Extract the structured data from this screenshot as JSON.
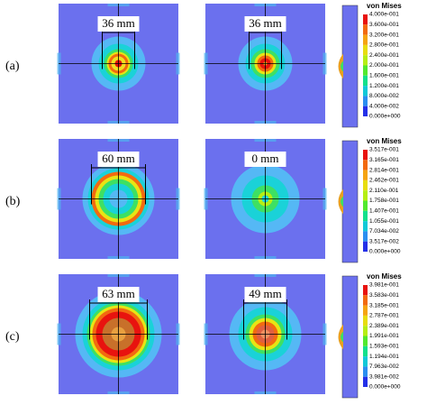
{
  "rows": [
    {
      "label": "(a)",
      "panels": [
        {
          "dimension": "36 mm"
        },
        {
          "dimension": "36 mm"
        }
      ],
      "legend": {
        "title": "von Mises",
        "levels": [
          "4.000e-001",
          "3.600e-001",
          "3.200e-001",
          "2.800e-001",
          "2.400e-001",
          "2.000e-001",
          "1.600e-001",
          "1.200e-001",
          "8.000e-002",
          "4.000e-002",
          "0.000e+000"
        ]
      }
    },
    {
      "label": "(b)",
      "panels": [
        {
          "dimension": "60 mm"
        },
        {
          "dimension": "0 mm"
        }
      ],
      "legend": {
        "title": "von Mises",
        "levels": [
          "3.517e-001",
          "3.165e-001",
          "2.814e-001",
          "2.462e-001",
          "2.110e-001",
          "1.758e-001",
          "1.407e-001",
          "1.055e-001",
          "7.034e-002",
          "3.517e-002",
          "0.000e+000"
        ]
      }
    },
    {
      "label": "(c)",
      "panels": [
        {
          "dimension": "63 mm"
        },
        {
          "dimension": "49 mm"
        }
      ],
      "legend": {
        "title": "von Mises",
        "levels": [
          "3.981e-001",
          "3.583e-001",
          "3.185e-001",
          "2.787e-001",
          "2.389e-001",
          "1.991e-001",
          "1.593e-001",
          "1.194e-001",
          "7.963e-002",
          "3.981e-002",
          "0.000e+000"
        ]
      }
    }
  ]
}
